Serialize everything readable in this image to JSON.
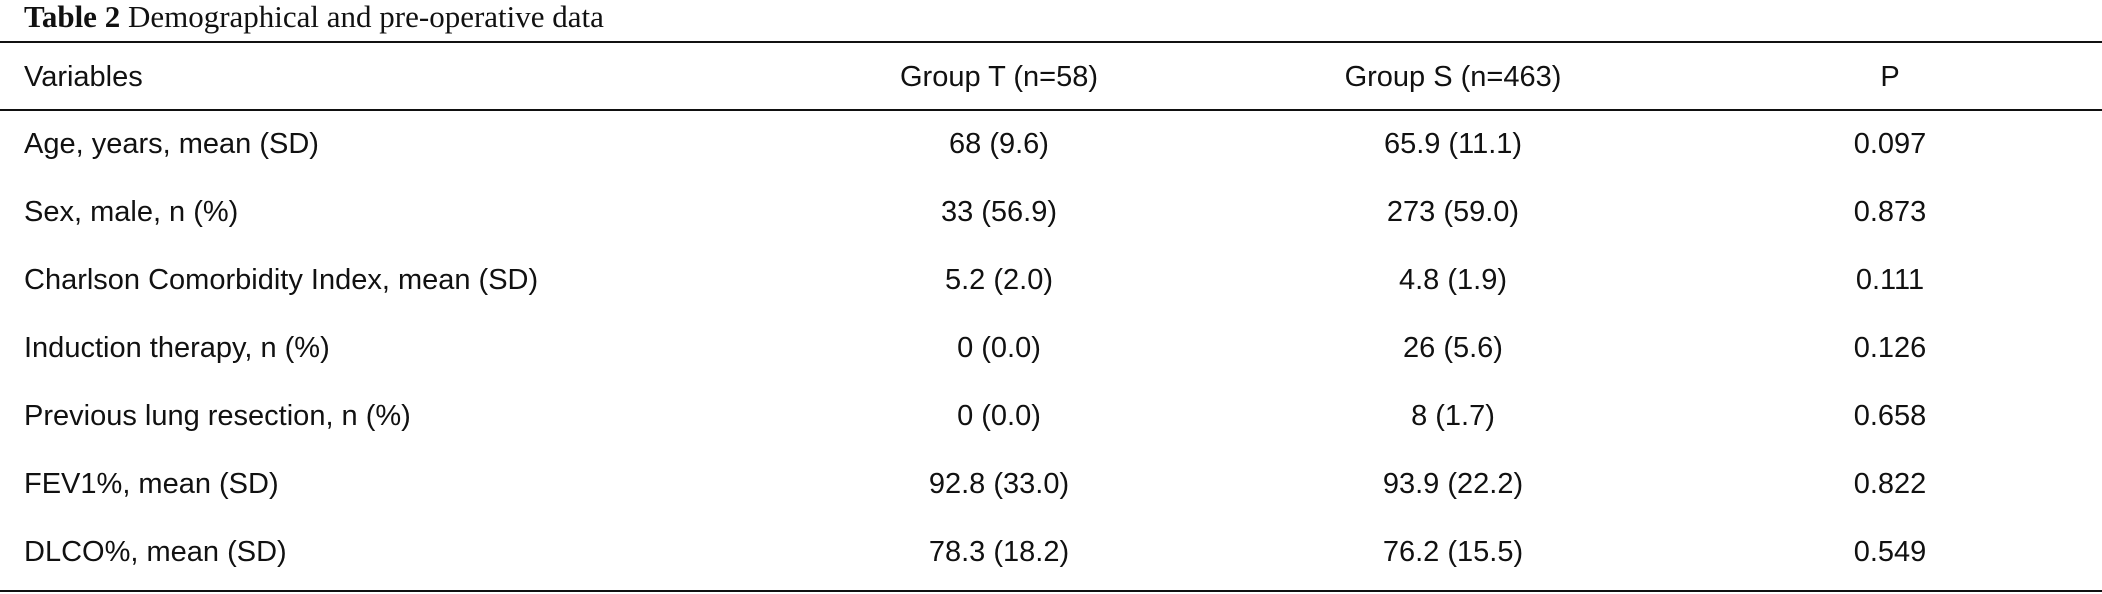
{
  "caption": {
    "label": "Table 2",
    "title": "Demographical and pre-operative data"
  },
  "table": {
    "headers": [
      "Variables",
      "Group T (n=58)",
      "Group S (n=463)",
      "P"
    ],
    "rows": [
      [
        "Age, years, mean (SD)",
        "68 (9.6)",
        "65.9 (11.1)",
        "0.097"
      ],
      [
        "Sex, male, n (%)",
        "33 (56.9)",
        "273 (59.0)",
        "0.873"
      ],
      [
        "Charlson Comorbidity Index, mean (SD)",
        "5.2 (2.0)",
        "4.8 (1.9)",
        "0.111"
      ],
      [
        "Induction therapy, n (%)",
        "0 (0.0)",
        "26 (5.6)",
        "0.126"
      ],
      [
        "Previous lung resection, n (%)",
        "0 (0.0)",
        "8 (1.7)",
        "0.658"
      ],
      [
        "FEV1%, mean (SD)",
        "92.8 (33.0)",
        "93.9 (22.2)",
        "0.822"
      ],
      [
        "DLCO%, mean (SD)",
        "78.3 (18.2)",
        "76.2 (15.5)",
        "0.549"
      ]
    ]
  }
}
